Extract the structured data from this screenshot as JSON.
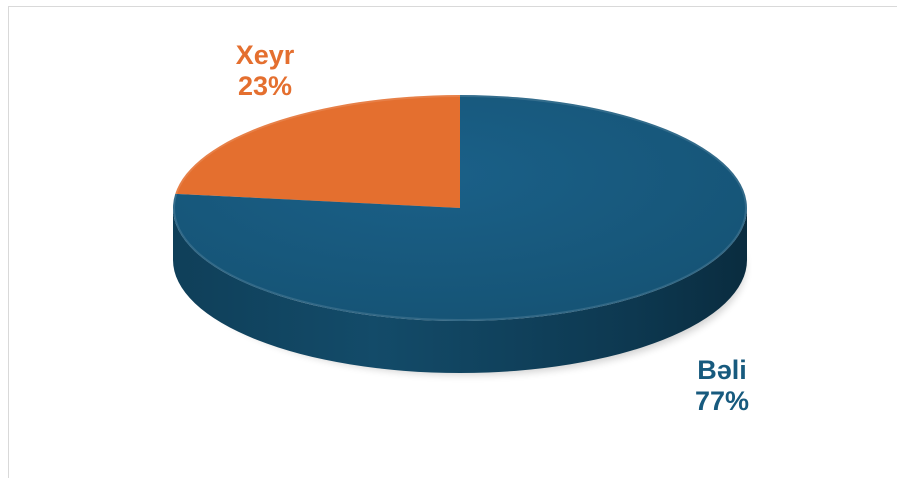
{
  "chart_data": {
    "type": "pie",
    "style": "3d-pie",
    "slices": [
      {
        "name": "Xeyr",
        "percent_label": "23%",
        "value": 23,
        "color": "#E46F2F"
      },
      {
        "name": "Bəli",
        "percent_label": "77%",
        "value": 77,
        "color": "#175A7E"
      }
    ],
    "title": "",
    "legend": "none (data labels outside slices)"
  }
}
